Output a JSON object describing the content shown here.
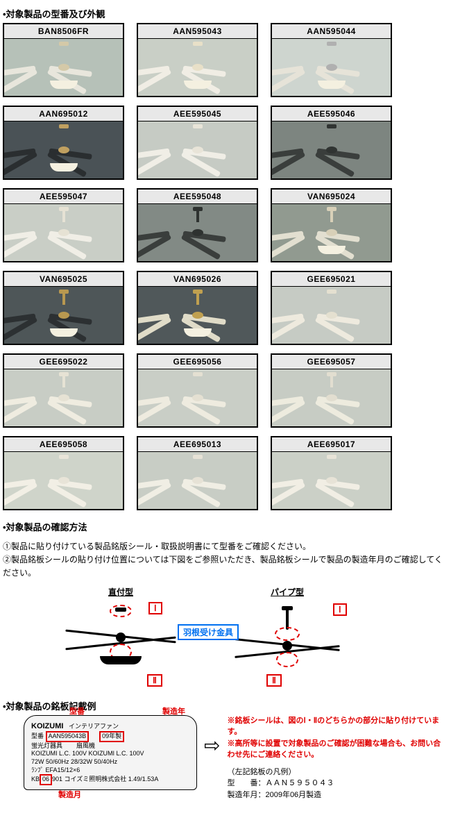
{
  "headings": {
    "products": "•対象製品の型番及び外観",
    "method": "•対象製品の確認方法",
    "label_example": "•対象製品の銘板記載例"
  },
  "products": [
    {
      "model": "BAN8506FR",
      "bg": "#b6c1b8",
      "blade": "#e8e6dc",
      "hub": "#d4c9a8",
      "lights": true
    },
    {
      "model": "AAN595043",
      "bg": "#c9cfc6",
      "blade": "#f0ede4",
      "hub": "#e8e0c8",
      "lights": true
    },
    {
      "model": "AAN595044",
      "bg": "#ced5cf",
      "blade": "#e6e3d8",
      "hub": "#b0b0b0",
      "lights": true
    },
    {
      "model": "AAN695012",
      "bg": "#4a5256",
      "blade": "#2a2e30",
      "hub": "#c0a060",
      "lights": true
    },
    {
      "model": "AEE595045",
      "bg": "#c6cbc4",
      "blade": "#f0eee6",
      "hub": "#e8e4d8",
      "lights": false
    },
    {
      "model": "AEE595046",
      "bg": "#7d8580",
      "blade": "#3a3e3c",
      "hub": "#303432",
      "lights": false
    },
    {
      "model": "AEE595047",
      "bg": "#c9cec6",
      "blade": "#f0eee6",
      "hub": "#e6e2d4",
      "lights": false,
      "rod": true
    },
    {
      "model": "AEE595048",
      "bg": "#828a85",
      "blade": "#3a3e3c",
      "hub": "#2e3230",
      "lights": false,
      "rod": true
    },
    {
      "model": "VAN695024",
      "bg": "#919a90",
      "blade": "#e2dfd0",
      "hub": "#d8d0b8",
      "lights": true,
      "rod": true
    },
    {
      "model": "VAN695025",
      "bg": "#4e5658",
      "blade": "#2c3032",
      "hub": "#b89850",
      "lights": true,
      "rod": true
    },
    {
      "model": "VAN695026",
      "bg": "#50585a",
      "blade": "#e0dcc8",
      "hub": "#c0a050",
      "lights": true,
      "rod": true
    },
    {
      "model": "GEE695021",
      "bg": "#c6cbc4",
      "blade": "#eeeade",
      "hub": "#e4e0d0",
      "lights": false
    },
    {
      "model": "GEE695022",
      "bg": "#c8cdc5",
      "blade": "#efece0",
      "hub": "#e6e2d4",
      "lights": false,
      "rod": true
    },
    {
      "model": "GEE695056",
      "bg": "#c9cec6",
      "blade": "#eeebdf",
      "hub": "#e4e0d2",
      "lights": false
    },
    {
      "model": "GEE695057",
      "bg": "#c7ccc4",
      "blade": "#edebde",
      "hub": "#e2ded0",
      "lights": false,
      "rod": true
    },
    {
      "model": "AEE695058",
      "bg": "#cfd4ca",
      "blade": "#f2efe5",
      "hub": "#e8e4d8",
      "lights": false
    },
    {
      "model": "AEE695013",
      "bg": "#c8cdc5",
      "blade": "#f0eee4",
      "hub": "#e6e2d6",
      "lights": false
    },
    {
      "model": "AEE695017",
      "bg": "#cbd0c7",
      "blade": "#f1eee4",
      "hub": "#e7e3d7",
      "lights": false
    }
  ],
  "method": {
    "line1": "①製品に貼り付けている製品銘版シール・取扱説明書にて型番をご確認ください。",
    "line2": "②製品銘板シールの貼り付け位置については下図をご参照いただき、製品銘板シールで製品の製造年月のご確認してください。"
  },
  "diagram": {
    "direct_title": "直付型",
    "pipe_title": "パイプ型",
    "marker_i": "Ⅰ",
    "marker_ii": "Ⅱ",
    "bracket_label": "羽根受け金具"
  },
  "callouts": {
    "model": "型番",
    "mfg_year": "製造年",
    "mfg_month": "製造月"
  },
  "plate": {
    "brand": "KOIZUMI",
    "product_type": "インテリアファン",
    "model_label": "型番",
    "model_value": "AAN595043B",
    "year_value": "09年製",
    "row1": "蛍光灯器具",
    "row1b": "扇風機",
    "row2": "KOIZUMI L.C. 100V   KOIZUMI L.C. 100V",
    "row3": "72W      50/60Hz    28/32W   50/40Hz",
    "row4a": "ﾗﾝﾌﾟ EFA15/12×6",
    "row4b_prefix": "KB",
    "row4b_mon": "06",
    "row4b_suffix": "901  コイズミ照明株式会社  1.49/1.53A"
  },
  "notes": {
    "red1": "※銘板シールは、図のⅠ・Ⅱのどちらかの部分に貼り付けています。",
    "red2": "※高所等に設置で対象製品のご確認が困難な場合も、お問い合わせ先にご連絡ください。",
    "legend_title": "（左記銘板の凡例）",
    "legend_model": "型　　番：ＡＡＮ５９５０４３",
    "legend_date": "製造年月：2009年06月製造"
  },
  "colors": {
    "red": "#e00000",
    "blue": "#0070f0"
  }
}
